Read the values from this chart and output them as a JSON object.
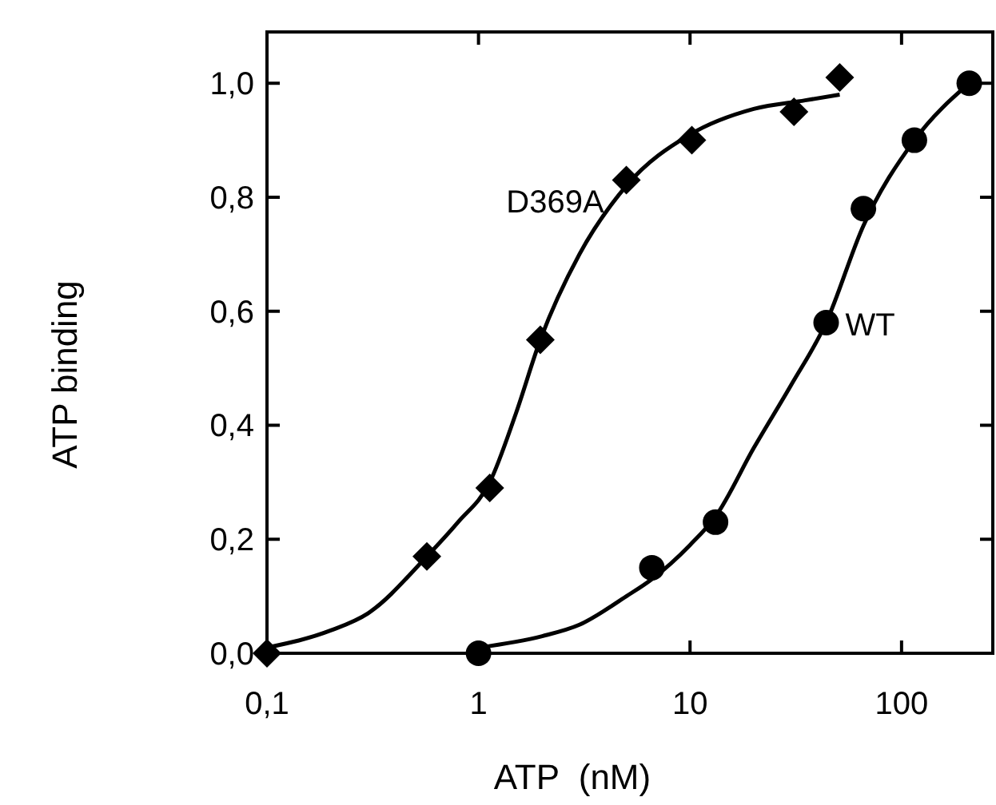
{
  "chart_data": {
    "type": "scatter",
    "xlabel": "ATP  (nM)",
    "ylabel": "ATP binding",
    "log": "x",
    "xlim": [
      0.1,
      270
    ],
    "ylim": [
      0,
      1.09
    ],
    "xticks": [
      {
        "value": 0.1,
        "label": "0,1"
      },
      1,
      10,
      100
    ],
    "yticks": [
      {
        "value": 0,
        "label": "0,0"
      },
      {
        "value": 0.2,
        "label": "0,2"
      },
      {
        "value": 0.4,
        "label": "0,4"
      },
      {
        "value": 0.6,
        "label": "0,6"
      },
      {
        "value": 0.8,
        "label": "0,8"
      },
      {
        "value": 1,
        "label": "1,0"
      }
    ],
    "grid": false,
    "series": [
      {
        "name": "D369A",
        "type": "scatter",
        "marker": "diamond",
        "color": "#000000",
        "x": [
          0.1,
          0.57,
          1.13,
          1.96,
          5.0,
          10.2,
          31,
          51
        ],
        "values": [
          0.0,
          0.17,
          0.29,
          0.55,
          0.83,
          0.9,
          0.95,
          1.01
        ]
      },
      {
        "name": "WT",
        "type": "scatter",
        "marker": "circle",
        "color": "#000000",
        "x": [
          1,
          6.6,
          13.2,
          44,
          66,
          115,
          209
        ],
        "values": [
          0.0,
          0.15,
          0.23,
          0.58,
          0.78,
          0.9,
          1.0
        ]
      },
      {
        "type": "line",
        "marker": "none",
        "line_style": "solid",
        "color": "#000000",
        "x": [
          0.1,
          0.2,
          0.3,
          0.57,
          0.8,
          1.13,
          1.5,
          1.96,
          3,
          5,
          10,
          20,
          35,
          51
        ],
        "values": [
          0.01,
          0.04,
          0.07,
          0.17,
          0.23,
          0.3,
          0.42,
          0.55,
          0.7,
          0.82,
          0.91,
          0.955,
          0.97,
          0.98
        ]
      },
      {
        "type": "line",
        "marker": "none",
        "line_style": "solid",
        "color": "#000000",
        "x": [
          1,
          2,
          3,
          5,
          6.6,
          10,
          13.2,
          20,
          30,
          44,
          66,
          115,
          209
        ],
        "values": [
          0.01,
          0.03,
          0.05,
          0.1,
          0.13,
          0.19,
          0.24,
          0.36,
          0.47,
          0.58,
          0.75,
          0.9,
          1.0
        ]
      }
    ]
  }
}
